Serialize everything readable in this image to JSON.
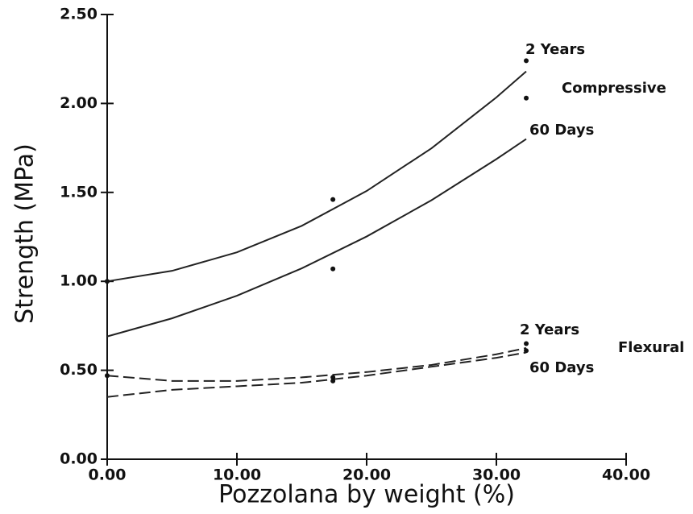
{
  "chart_data": {
    "type": "line",
    "x_label": "Pozzolana by weight (%)",
    "y_label": "Strength (MPa)",
    "xlim": [
      0,
      40
    ],
    "ylim": [
      0,
      2.5
    ],
    "xticks": [
      {
        "value": 0,
        "label": "0.00"
      },
      {
        "value": 10,
        "label": "10.00"
      },
      {
        "value": 20,
        "label": "20.00"
      },
      {
        "value": 30,
        "label": "30.00"
      },
      {
        "value": 40,
        "label": "40.00"
      }
    ],
    "yticks": [
      {
        "value": 0,
        "label": "0.00"
      },
      {
        "value": 0.5,
        "label": "0.50"
      },
      {
        "value": 1,
        "label": "1.00"
      },
      {
        "value": 1.5,
        "label": "1.50"
      },
      {
        "value": 2,
        "label": "2.00"
      },
      {
        "value": 2.5,
        "label": "2.50"
      }
    ],
    "x": [
      0,
      5,
      10,
      15,
      20,
      25,
      30,
      32.3
    ],
    "series": [
      {
        "color": "#222",
        "dashed": false,
        "values": [
          1.0,
          1.059,
          1.163,
          1.312,
          1.508,
          1.748,
          2.034,
          2.18
        ]
      },
      {
        "color": "#222",
        "dashed": false,
        "values": [
          0.69,
          0.792,
          0.919,
          1.073,
          1.252,
          1.456,
          1.687,
          1.8
        ]
      },
      {
        "color": "#222",
        "dashed": true,
        "values": [
          0.47,
          0.44,
          0.44,
          0.46,
          0.49,
          0.53,
          0.59,
          0.625
        ]
      },
      {
        "color": "#222",
        "dashed": true,
        "values": [
          0.35,
          0.39,
          0.41,
          0.43,
          0.47,
          0.52,
          0.57,
          0.6
        ]
      }
    ],
    "points": {
      "color": "#111",
      "x": [
        0,
        0,
        17.4,
        17.4,
        17.4,
        17.4,
        32.3,
        32.3,
        32.3,
        32.3
      ],
      "values": [
        1.0,
        0.47,
        1.46,
        1.07,
        0.46,
        0.44,
        2.24,
        2.03,
        0.65,
        0.61
      ]
    },
    "annotations": [
      "2 Years",
      "Compressive",
      "60 Days",
      "2 Years",
      "Flexural",
      "60 Days"
    ]
  }
}
